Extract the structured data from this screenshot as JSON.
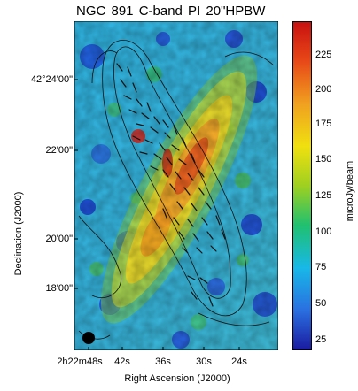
{
  "figure": {
    "title": "NGC 891    C-band    PI    20\"HPBW",
    "xlabel": "Right Ascension (J2000)",
    "ylabel": "Declination (J2000)",
    "x_ticks": [
      "2h22m48s",
      "42s",
      "36s",
      "30s",
      "24s"
    ],
    "y_ticks": [
      "42°24'00\"",
      "22'00\"",
      "20'00\"",
      "18'00\""
    ],
    "colorbar": {
      "label": "microJy/beam",
      "ticks": [
        "225",
        "200",
        "175",
        "150",
        "125",
        "100",
        "75",
        "50",
        "25"
      ],
      "colors": [
        "#1a1aa0",
        "#2a6fe0",
        "#18b8e8",
        "#20c070",
        "#9ed020",
        "#f0e010",
        "#f0a020",
        "#e84818",
        "#c81010"
      ]
    }
  }
}
